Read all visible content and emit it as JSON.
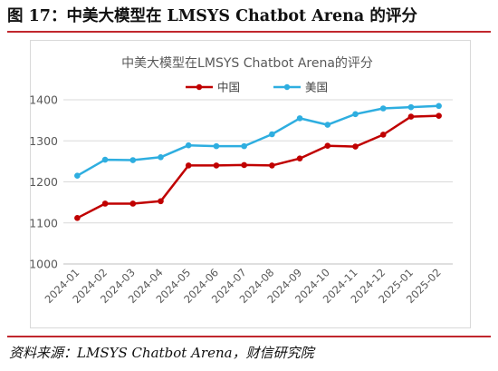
{
  "figure": {
    "title": "图 17：中美大模型在 LMSYS Chatbot Arena 的评分",
    "source": "资料来源：LMSYS Chatbot Arena，财信研究院"
  },
  "colors": {
    "china": "#c00000",
    "usa": "#2eaee0",
    "rule": "#c1272d",
    "grid": "#d9d9d9",
    "axis_text": "#595959"
  },
  "chart_data": {
    "type": "line",
    "title": "中美大模型在LMSYS Chatbot Arena的评分",
    "legend_position": "top-center",
    "grid": true,
    "categories": [
      "2024-01",
      "2024-02",
      "2024-03",
      "2024-04",
      "2024-05",
      "2024-06",
      "2024-07",
      "2024-08",
      "2024-09",
      "2024-10",
      "2024-11",
      "2024-12",
      "2025-01",
      "2025-02"
    ],
    "ylim": [
      1000,
      1400
    ],
    "yticks": [
      1000,
      1100,
      1200,
      1300,
      1400
    ],
    "series": [
      {
        "name": "中国",
        "values": [
          1112,
          1147,
          1147,
          1153,
          1240,
          1240,
          1241,
          1240,
          1257,
          1288,
          1286,
          1315,
          1359,
          1361
        ]
      },
      {
        "name": "美国",
        "values": [
          1215,
          1254,
          1253,
          1260,
          1289,
          1287,
          1287,
          1316,
          1355,
          1339,
          1365,
          1379,
          1382,
          1385
        ]
      }
    ]
  }
}
